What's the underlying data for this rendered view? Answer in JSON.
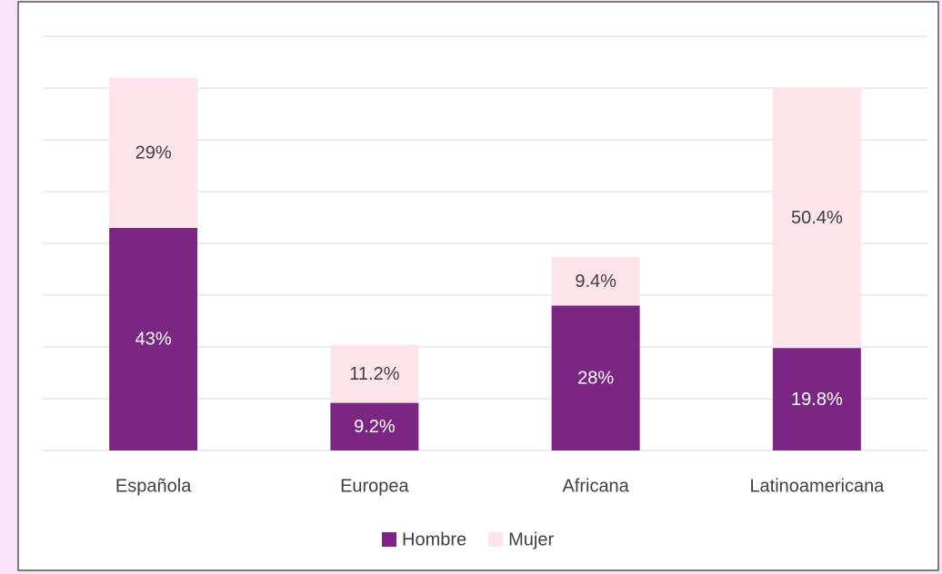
{
  "chart_data": {
    "type": "stacked-bar",
    "categories": [
      "Española",
      "Europea",
      "Africana",
      "Latinoamericana"
    ],
    "series": [
      {
        "name": "Hombre",
        "color": "#7b2682",
        "values": [
          43,
          9.2,
          28,
          19.8
        ],
        "value_labels": [
          "43%",
          "9.2%",
          "28%",
          "19.8%"
        ]
      },
      {
        "name": "Mujer",
        "color": "#fde4ea",
        "values": [
          29,
          11.2,
          9.4,
          50.4
        ],
        "value_labels": [
          "29%",
          "11.2%",
          "9.4%",
          "50.4%"
        ]
      }
    ],
    "ylim": [
      0,
      80
    ],
    "yticks": [
      0,
      10,
      20,
      30,
      40,
      50,
      60,
      70,
      80
    ],
    "grid": true,
    "legend": "bottom"
  }
}
